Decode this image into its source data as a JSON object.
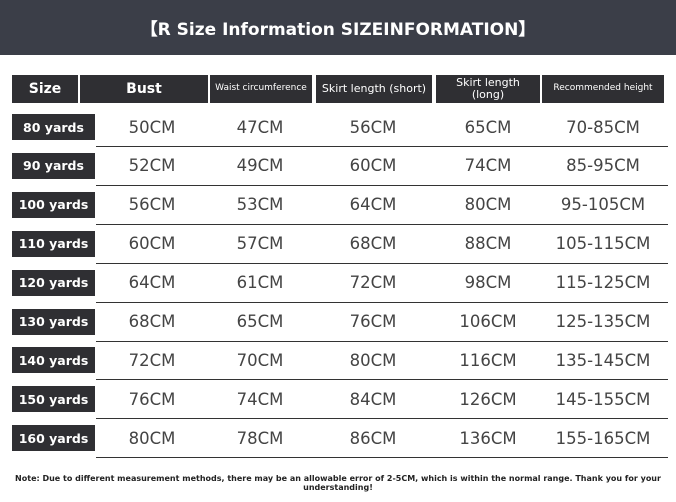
{
  "header": {
    "title": "【R Size Information SIZEINFORMATION】"
  },
  "table": {
    "columns": [
      "Size",
      "Bust",
      "Waist circumference",
      "Skirt length (short)",
      "Skirt length (long)",
      "Recommended height"
    ],
    "rows": [
      [
        "80 yards",
        "50CM",
        "47CM",
        "56CM",
        "65CM",
        "70-85CM"
      ],
      [
        "90 yards",
        "52CM",
        "49CM",
        "60CM",
        "74CM",
        "85-95CM"
      ],
      [
        "100 yards",
        "56CM",
        "53CM",
        "64CM",
        "80CM",
        "95-105CM"
      ],
      [
        "110 yards",
        "60CM",
        "57CM",
        "68CM",
        "88CM",
        "105-115CM"
      ],
      [
        "120 yards",
        "64CM",
        "61CM",
        "72CM",
        "98CM",
        "115-125CM"
      ],
      [
        "130 yards",
        "68CM",
        "65CM",
        "76CM",
        "106CM",
        "125-135CM"
      ],
      [
        "140 yards",
        "72CM",
        "70CM",
        "80CM",
        "116CM",
        "135-145CM"
      ],
      [
        "150 yards",
        "76CM",
        "74CM",
        "84CM",
        "126CM",
        "145-155CM"
      ],
      [
        "160 yards",
        "80CM",
        "78CM",
        "86CM",
        "136CM",
        "155-165CM"
      ]
    ]
  },
  "note": "Note: Due to different measurement methods, there may be an allowable error of 2-5CM, which is within the normal range. Thank you for your understanding!"
}
